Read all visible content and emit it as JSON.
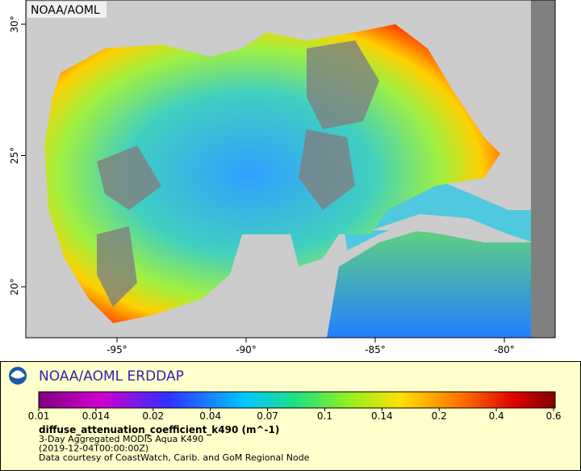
{
  "map": {
    "watermark": "NOAA/AOML",
    "x_ticks": [
      "-95°",
      "-90°",
      "-85°",
      "-80°"
    ],
    "y_ticks": [
      "30°",
      "25°",
      "20°"
    ]
  },
  "legend": {
    "title": "NOAA/AOML ERDDAP",
    "colorbar_ticks": [
      "0.01",
      "0.014",
      "0.02",
      "0.04",
      "0.07",
      "0.1",
      "0.14",
      "0.2",
      "0.4",
      "0.6"
    ],
    "variable": "diffuse_attenuation_coefficient_k490 (m^-1)",
    "lines": [
      "3-Day Aggregated MODIS Aqua K490",
      "(2019-12-04T00:00:00Z)",
      "Data courtesy of CoastWatch, Carib. and GoM Regional Node"
    ]
  }
}
